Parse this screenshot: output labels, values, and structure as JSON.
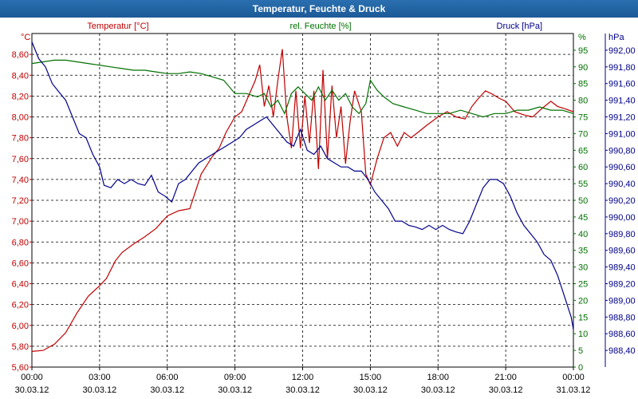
{
  "window": {
    "title": "Temperatur, Feuchte & Druck"
  },
  "colors": {
    "temperature": "#c00000",
    "humidity": "#007000",
    "pressure": "#00008b",
    "title_bar": "#1f5f9f"
  },
  "chart_data": {
    "type": "line",
    "title": "Temperatur, Feuchte & Druck",
    "x": {
      "ticks": [
        {
          "time": "00:00",
          "date": "30.03.12",
          "hour": 0
        },
        {
          "time": "03:00",
          "date": "30.03.12",
          "hour": 3
        },
        {
          "time": "06:00",
          "date": "30.03.12",
          "hour": 6
        },
        {
          "time": "09:00",
          "date": "30.03.12",
          "hour": 9
        },
        {
          "time": "12:00",
          "date": "30.03.12",
          "hour": 12
        },
        {
          "time": "15:00",
          "date": "30.03.12",
          "hour": 15
        },
        {
          "time": "18:00",
          "date": "30.03.12",
          "hour": 18
        },
        {
          "time": "21:00",
          "date": "30.03.12",
          "hour": 21
        },
        {
          "time": "00:00",
          "date": "31.03.12",
          "hour": 24
        }
      ],
      "range": [
        0,
        24
      ]
    },
    "axes": {
      "temperature": {
        "unit": "°C",
        "min": 5.6,
        "max": 8.8,
        "ticks": [
          "5,60",
          "5,80",
          "6,00",
          "6,20",
          "6,40",
          "6,60",
          "6,80",
          "7,00",
          "7,20",
          "7,40",
          "7,60",
          "7,80",
          "8,00",
          "8,20",
          "8,40",
          "8,60"
        ]
      },
      "humidity": {
        "unit": "%",
        "min": 0,
        "max": 100,
        "ticks": [
          "0",
          "5",
          "10",
          "15",
          "20",
          "25",
          "30",
          "35",
          "40",
          "45",
          "50",
          "55",
          "60",
          "65",
          "70",
          "75",
          "80",
          "85",
          "90",
          "95"
        ]
      },
      "pressure": {
        "unit": "hPa",
        "min": 988.2,
        "max": 992.2,
        "ticks": [
          "988,40",
          "988,60",
          "988,80",
          "989,00",
          "989,20",
          "989,40",
          "989,60",
          "989,80",
          "990,00",
          "990,20",
          "990,40",
          "990,60",
          "990,80",
          "991,00",
          "991,20",
          "991,40",
          "991,60",
          "991,80",
          "992,00"
        ]
      }
    },
    "grid": true,
    "series": [
      {
        "name": "Temperatur [°C]",
        "axis": "temperature",
        "color": "#c00000",
        "points": [
          [
            0,
            5.75
          ],
          [
            0.5,
            5.76
          ],
          [
            1,
            5.82
          ],
          [
            1.5,
            5.93
          ],
          [
            2,
            6.12
          ],
          [
            2.5,
            6.28
          ],
          [
            3,
            6.38
          ],
          [
            3.3,
            6.45
          ],
          [
            3.7,
            6.62
          ],
          [
            4,
            6.7
          ],
          [
            4.5,
            6.78
          ],
          [
            5,
            6.85
          ],
          [
            5.5,
            6.93
          ],
          [
            6,
            7.05
          ],
          [
            6.5,
            7.1
          ],
          [
            7,
            7.12
          ],
          [
            7.5,
            7.45
          ],
          [
            8,
            7.62
          ],
          [
            8.3,
            7.7
          ],
          [
            8.6,
            7.85
          ],
          [
            9,
            8.0
          ],
          [
            9.3,
            8.05
          ],
          [
            9.6,
            8.2
          ],
          [
            9.9,
            8.35
          ],
          [
            10.1,
            8.5
          ],
          [
            10.3,
            8.1
          ],
          [
            10.5,
            8.3
          ],
          [
            10.7,
            8.0
          ],
          [
            10.9,
            8.35
          ],
          [
            11.1,
            8.65
          ],
          [
            11.3,
            8.0
          ],
          [
            11.5,
            7.7
          ],
          [
            11.7,
            8.25
          ],
          [
            11.9,
            7.7
          ],
          [
            12.1,
            8.2
          ],
          [
            12.3,
            7.75
          ],
          [
            12.5,
            8.25
          ],
          [
            12.7,
            7.5
          ],
          [
            12.9,
            8.45
          ],
          [
            13.1,
            7.6
          ],
          [
            13.3,
            8.3
          ],
          [
            13.5,
            7.8
          ],
          [
            13.7,
            8.1
          ],
          [
            13.9,
            7.55
          ],
          [
            14.1,
            7.95
          ],
          [
            14.3,
            8.25
          ],
          [
            14.6,
            8.05
          ],
          [
            14.8,
            7.45
          ],
          [
            15,
            7.35
          ],
          [
            15.3,
            7.6
          ],
          [
            15.6,
            7.8
          ],
          [
            15.9,
            7.85
          ],
          [
            16.2,
            7.72
          ],
          [
            16.5,
            7.85
          ],
          [
            16.8,
            7.8
          ],
          [
            17.1,
            7.85
          ],
          [
            17.5,
            7.92
          ],
          [
            18,
            8.0
          ],
          [
            18.4,
            8.05
          ],
          [
            18.8,
            8.0
          ],
          [
            19.2,
            7.98
          ],
          [
            19.5,
            8.1
          ],
          [
            19.8,
            8.18
          ],
          [
            20.1,
            8.25
          ],
          [
            20.4,
            8.22
          ],
          [
            20.7,
            8.18
          ],
          [
            21,
            8.15
          ],
          [
            21.4,
            8.05
          ],
          [
            21.8,
            8.02
          ],
          [
            22.2,
            8.0
          ],
          [
            22.6,
            8.08
          ],
          [
            23,
            8.15
          ],
          [
            23.3,
            8.1
          ],
          [
            23.6,
            8.08
          ],
          [
            24,
            8.05
          ]
        ]
      },
      {
        "name": "rel. Feuchte [%]",
        "axis": "humidity",
        "color": "#007000",
        "points": [
          [
            0,
            91
          ],
          [
            0.5,
            91.5
          ],
          [
            1,
            92
          ],
          [
            1.5,
            92
          ],
          [
            2,
            91.5
          ],
          [
            2.5,
            91
          ],
          [
            3,
            90.5
          ],
          [
            3.5,
            90
          ],
          [
            4,
            89.5
          ],
          [
            4.5,
            89
          ],
          [
            5,
            89
          ],
          [
            5.5,
            88.5
          ],
          [
            6,
            88
          ],
          [
            6.5,
            88
          ],
          [
            7,
            88.5
          ],
          [
            7.5,
            88
          ],
          [
            8,
            87
          ],
          [
            8.5,
            86
          ],
          [
            9,
            82
          ],
          [
            9.5,
            82
          ],
          [
            10,
            81
          ],
          [
            10.3,
            82
          ],
          [
            10.6,
            78
          ],
          [
            10.9,
            80
          ],
          [
            11.2,
            76
          ],
          [
            11.5,
            82
          ],
          [
            11.8,
            84
          ],
          [
            12.1,
            82
          ],
          [
            12.4,
            80
          ],
          [
            12.7,
            84
          ],
          [
            13,
            80
          ],
          [
            13.3,
            83
          ],
          [
            13.6,
            80
          ],
          [
            13.9,
            82
          ],
          [
            14.2,
            78
          ],
          [
            14.5,
            76
          ],
          [
            14.8,
            79
          ],
          [
            15,
            86
          ],
          [
            15.3,
            83
          ],
          [
            15.6,
            81
          ],
          [
            16,
            79
          ],
          [
            16.5,
            78
          ],
          [
            17,
            77
          ],
          [
            17.5,
            76
          ],
          [
            18,
            76
          ],
          [
            18.5,
            76
          ],
          [
            19,
            77
          ],
          [
            19.5,
            76
          ],
          [
            20,
            75
          ],
          [
            20.5,
            76
          ],
          [
            21,
            76
          ],
          [
            21.5,
            77
          ],
          [
            22,
            77
          ],
          [
            22.5,
            78
          ],
          [
            23,
            77
          ],
          [
            23.5,
            77
          ],
          [
            24,
            76
          ]
        ]
      },
      {
        "name": "Druck [hPa]",
        "axis": "pressure",
        "color": "#00008b",
        "points": [
          [
            0,
            992.1
          ],
          [
            0.3,
            991.9
          ],
          [
            0.6,
            991.8
          ],
          [
            0.9,
            991.6
          ],
          [
            1.2,
            991.5
          ],
          [
            1.5,
            991.4
          ],
          [
            1.8,
            991.2
          ],
          [
            2.1,
            991.0
          ],
          [
            2.4,
            990.95
          ],
          [
            2.7,
            990.75
          ],
          [
            3,
            990.6
          ],
          [
            3.2,
            990.38
          ],
          [
            3.5,
            990.35
          ],
          [
            3.8,
            990.45
          ],
          [
            4.1,
            990.4
          ],
          [
            4.4,
            990.45
          ],
          [
            4.7,
            990.4
          ],
          [
            5,
            990.38
          ],
          [
            5.3,
            990.5
          ],
          [
            5.6,
            990.3
          ],
          [
            5.9,
            990.25
          ],
          [
            6.2,
            990.18
          ],
          [
            6.5,
            990.4
          ],
          [
            6.8,
            990.45
          ],
          [
            7.1,
            990.55
          ],
          [
            7.4,
            990.65
          ],
          [
            7.7,
            990.7
          ],
          [
            8,
            990.75
          ],
          [
            8.3,
            990.8
          ],
          [
            8.6,
            990.85
          ],
          [
            8.9,
            990.9
          ],
          [
            9.2,
            990.95
          ],
          [
            9.5,
            991.05
          ],
          [
            9.8,
            991.1
          ],
          [
            10.1,
            991.15
          ],
          [
            10.4,
            991.2
          ],
          [
            10.7,
            991.1
          ],
          [
            11,
            991.0
          ],
          [
            11.3,
            990.9
          ],
          [
            11.6,
            990.85
          ],
          [
            11.9,
            991.05
          ],
          [
            12.2,
            990.8
          ],
          [
            12.5,
            990.75
          ],
          [
            12.8,
            990.85
          ],
          [
            13.1,
            990.7
          ],
          [
            13.4,
            990.65
          ],
          [
            13.7,
            990.6
          ],
          [
            14,
            990.6
          ],
          [
            14.3,
            990.55
          ],
          [
            14.6,
            990.55
          ],
          [
            14.9,
            990.45
          ],
          [
            15.2,
            990.3
          ],
          [
            15.5,
            990.2
          ],
          [
            15.8,
            990.1
          ],
          [
            16.1,
            989.95
          ],
          [
            16.4,
            989.95
          ],
          [
            16.7,
            989.9
          ],
          [
            17,
            989.88
          ],
          [
            17.3,
            989.85
          ],
          [
            17.6,
            989.9
          ],
          [
            17.9,
            989.85
          ],
          [
            18.2,
            989.9
          ],
          [
            18.5,
            989.85
          ],
          [
            18.8,
            989.82
          ],
          [
            19.1,
            989.8
          ],
          [
            19.4,
            989.95
          ],
          [
            19.7,
            990.15
          ],
          [
            20,
            990.35
          ],
          [
            20.3,
            990.45
          ],
          [
            20.6,
            990.45
          ],
          [
            20.9,
            990.4
          ],
          [
            21.2,
            990.25
          ],
          [
            21.5,
            990.05
          ],
          [
            21.8,
            989.9
          ],
          [
            22.1,
            989.8
          ],
          [
            22.4,
            989.7
          ],
          [
            22.7,
            989.55
          ],
          [
            23,
            989.48
          ],
          [
            23.3,
            989.3
          ],
          [
            23.6,
            989.05
          ],
          [
            23.9,
            988.8
          ],
          [
            24,
            988.65
          ]
        ]
      }
    ]
  },
  "legend": {
    "temperature": "Temperatur [°C]",
    "humidity": "rel. Feuchte [%]",
    "pressure": "Druck [hPa]"
  }
}
